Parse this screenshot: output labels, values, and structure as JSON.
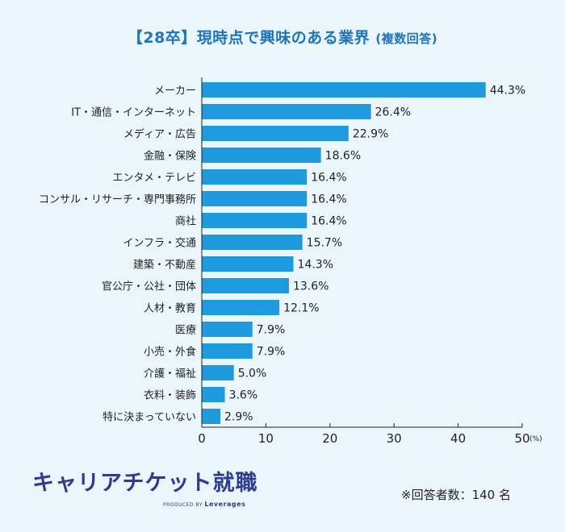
{
  "title": {
    "main": "【28卒】現時点で興味のある業界",
    "sub": "(複数回答)"
  },
  "chart_data": {
    "type": "bar",
    "orientation": "horizontal",
    "categories": [
      "メーカー",
      "IT・通信・インターネット",
      "メディア・広告",
      "金融・保険",
      "エンタメ・テレビ",
      "コンサル・リサーチ・専門事務所",
      "商社",
      "インフラ・交通",
      "建築・不動産",
      "官公庁・公社・団体",
      "人材・教育",
      "医療",
      "小売・外食",
      "介護・福祉",
      "衣料・装飾",
      "特に決まっていない"
    ],
    "values": [
      44.3,
      26.4,
      22.9,
      18.6,
      16.4,
      16.4,
      16.4,
      15.7,
      14.3,
      13.6,
      12.1,
      7.9,
      7.9,
      5.0,
      3.6,
      2.9
    ],
    "value_labels": [
      "44.3%",
      "26.4%",
      "22.9%",
      "18.6%",
      "16.4%",
      "16.4%",
      "16.4%",
      "15.7%",
      "14.3%",
      "13.6%",
      "12.1%",
      "7.9%",
      "7.9%",
      "5.0%",
      "3.6%",
      "2.9%"
    ],
    "xlim": [
      0,
      50
    ],
    "xticks": [
      0,
      10,
      20,
      30,
      40,
      50
    ],
    "x_unit": "(%)",
    "bar_color": "#1e9ade",
    "grid": false
  },
  "footer": {
    "brand_name": "キャリアチケット就職",
    "brand_sub_prefix": "PRODUCED BY",
    "brand_sub_name": "Leverages",
    "note": "※回答者数：140 名"
  }
}
